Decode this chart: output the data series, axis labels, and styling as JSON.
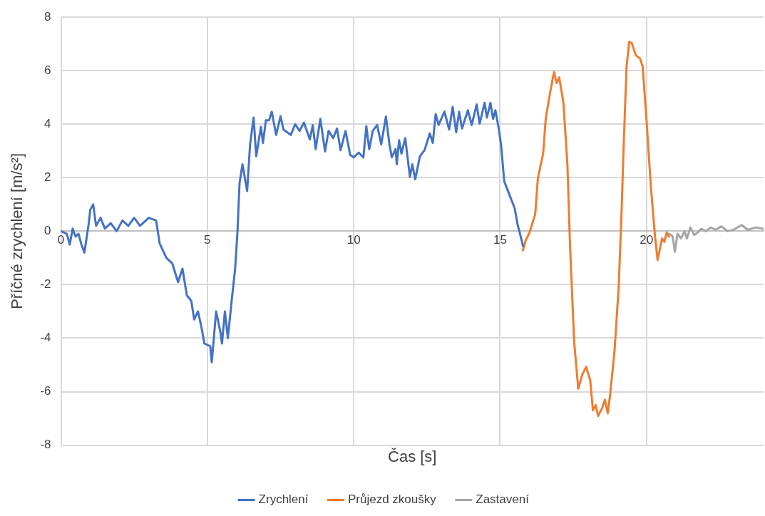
{
  "chart_data": {
    "type": "line",
    "xlabel": "Čas [s]",
    "ylabel": "Příčné zrychlení [m/s²]",
    "xlim": [
      0,
      24
    ],
    "xticks": [
      0,
      5,
      10,
      15,
      20
    ],
    "ylim": [
      -8,
      8
    ],
    "yticks": [
      -8,
      -6,
      -4,
      -2,
      0,
      2,
      4,
      6,
      8
    ],
    "grid": true,
    "legend": "bottom",
    "marker": "none",
    "line_style": "solid",
    "series": [
      {
        "name": "Zrychlení",
        "color": "#4472c4",
        "x": [
          0,
          0.2,
          0.3,
          0.4,
          0.5,
          0.6,
          0.7,
          0.8,
          0.95,
          1.0,
          1.1,
          1.2,
          1.35,
          1.5,
          1.7,
          1.9,
          2.1,
          2.3,
          2.5,
          2.7,
          3.0,
          3.25,
          3.37,
          3.6,
          3.8,
          4.0,
          4.15,
          4.3,
          4.45,
          4.55,
          4.68,
          4.8,
          4.9,
          5.1,
          5.15,
          5.3,
          5.45,
          5.5,
          5.6,
          5.7,
          5.85,
          5.95,
          6.03,
          6.1,
          6.2,
          6.36,
          6.46,
          6.58,
          6.67,
          6.83,
          6.9,
          7.0,
          7.11,
          7.2,
          7.35,
          7.5,
          7.6,
          7.85,
          8.0,
          8.15,
          8.3,
          8.5,
          8.6,
          8.7,
          8.86,
          9.02,
          9.14,
          9.3,
          9.43,
          9.55,
          9.72,
          9.88,
          10.0,
          10.17,
          10.33,
          10.43,
          10.53,
          10.65,
          10.8,
          10.94,
          11.1,
          11.22,
          11.3,
          11.43,
          11.47,
          11.55,
          11.63,
          11.76,
          11.92,
          12.0,
          12.1,
          12.26,
          12.42,
          12.6,
          12.7,
          12.8,
          12.9,
          13.1,
          13.26,
          13.38,
          13.5,
          13.6,
          13.7,
          13.9,
          14.03,
          14.2,
          14.3,
          14.47,
          14.55,
          14.67,
          14.76,
          14.84,
          14.96,
          15.04,
          15.14,
          15.32,
          15.5,
          15.6,
          15.74,
          15.78
        ],
        "values": [
          0,
          -0.1,
          -0.5,
          0.1,
          -0.2,
          -0.1,
          -0.5,
          -0.8,
          0.3,
          0.8,
          1.0,
          0.2,
          0.5,
          0.1,
          0.3,
          0.0,
          0.4,
          0.2,
          0.5,
          0.2,
          0.5,
          0.4,
          -0.45,
          -1.0,
          -1.2,
          -1.9,
          -1.4,
          -2.4,
          -2.6,
          -3.3,
          -3.0,
          -3.6,
          -4.2,
          -4.3,
          -4.9,
          -3.0,
          -3.8,
          -4.2,
          -3.0,
          -4.0,
          -2.4,
          -1.4,
          0.0,
          1.8,
          2.5,
          1.5,
          3.25,
          4.25,
          2.8,
          3.9,
          3.3,
          4.15,
          4.15,
          4.47,
          3.6,
          4.3,
          3.8,
          3.6,
          4.0,
          3.75,
          4.06,
          3.43,
          3.97,
          3.07,
          4.2,
          2.98,
          3.75,
          3.48,
          3.84,
          3.03,
          3.75,
          2.85,
          2.76,
          2.94,
          2.76,
          3.93,
          3.07,
          3.75,
          3.97,
          3.25,
          4.29,
          3.25,
          2.76,
          3.07,
          2.5,
          3.4,
          2.9,
          3.48,
          2.03,
          2.5,
          1.94,
          2.8,
          3.03,
          3.66,
          3.3,
          4.38,
          3.97,
          4.47,
          3.8,
          4.65,
          3.7,
          4.47,
          3.84,
          4.52,
          3.97,
          4.74,
          4.02,
          4.8,
          4.25,
          4.8,
          4.2,
          4.52,
          3.8,
          3.16,
          1.87,
          1.36,
          0.85,
          0.24,
          -0.35,
          -0.56
        ]
      },
      {
        "name": "Průjezd zkoušky",
        "color": "#ed7d31",
        "x": [
          15.78,
          15.87,
          16.0,
          16.2,
          16.29,
          16.47,
          16.56,
          16.7,
          16.84,
          16.93,
          17.02,
          17.16,
          17.3,
          17.39,
          17.53,
          17.67,
          17.8,
          17.94,
          18.08,
          18.17,
          18.26,
          18.35,
          18.49,
          18.58,
          18.68,
          18.77,
          18.91,
          19.05,
          19.14,
          19.23,
          19.32,
          19.41,
          19.5,
          19.64,
          19.78,
          19.87,
          20.01,
          20.15,
          20.29,
          20.38,
          20.53,
          20.61,
          20.69,
          20.77
        ],
        "values": [
          -0.72,
          -0.35,
          -0.07,
          0.64,
          1.98,
          2.9,
          4.22,
          5.14,
          5.95,
          5.54,
          5.75,
          4.83,
          2.48,
          -0.58,
          -4.15,
          -5.89,
          -5.38,
          -5.07,
          -5.58,
          -6.7,
          -6.5,
          -6.91,
          -6.6,
          -6.3,
          -6.81,
          -5.99,
          -4.46,
          -2.1,
          0.44,
          3.5,
          6.16,
          7.08,
          7.03,
          6.57,
          6.46,
          6.16,
          4.02,
          1.67,
          -0.17,
          -1.08,
          -0.27,
          -0.4,
          -0.05,
          -0.2
        ]
      },
      {
        "name": "Zastavení",
        "color": "#a5a5a5",
        "x": [
          20.77,
          20.89,
          20.97,
          21.06,
          21.18,
          21.3,
          21.38,
          21.5,
          21.63,
          21.75,
          21.87,
          22.03,
          22.2,
          22.36,
          22.56,
          22.77,
          22.97,
          23.25,
          23.46,
          23.74,
          23.98
        ],
        "values": [
          -0.09,
          -0.18,
          -0.77,
          -0.09,
          -0.27,
          0.0,
          -0.27,
          0.14,
          -0.14,
          -0.05,
          0.09,
          0.0,
          0.14,
          0.05,
          0.18,
          0.0,
          0.05,
          0.23,
          0.05,
          0.14,
          0.09
        ]
      }
    ]
  }
}
